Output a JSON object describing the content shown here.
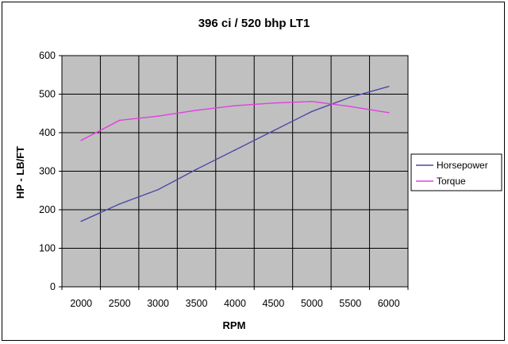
{
  "chart_data": {
    "type": "line",
    "title": "396 ci / 520 bhp LT1",
    "xlabel": "RPM",
    "ylabel": "HP - LB/FT",
    "x": [
      2000,
      2500,
      3000,
      3500,
      4000,
      4500,
      5000,
      5500,
      6000
    ],
    "xlim": [
      1750,
      6250
    ],
    "ylim": [
      0,
      600
    ],
    "yticks": [
      0,
      100,
      200,
      300,
      400,
      500,
      600
    ],
    "xticks": [
      2000,
      2500,
      3000,
      3500,
      4000,
      4500,
      5000,
      5500,
      6000
    ],
    "grid": true,
    "legend_position": "right",
    "plot_background": "#c0c0c0",
    "series": [
      {
        "name": "Horsepower",
        "color": "#4a4aa8",
        "values": [
          170,
          215,
          252,
          305,
          355,
          405,
          455,
          492,
          520
        ]
      },
      {
        "name": "Torque",
        "color": "#e040e0",
        "values": [
          380,
          432,
          443,
          458,
          470,
          477,
          481,
          468,
          452
        ]
      }
    ]
  }
}
